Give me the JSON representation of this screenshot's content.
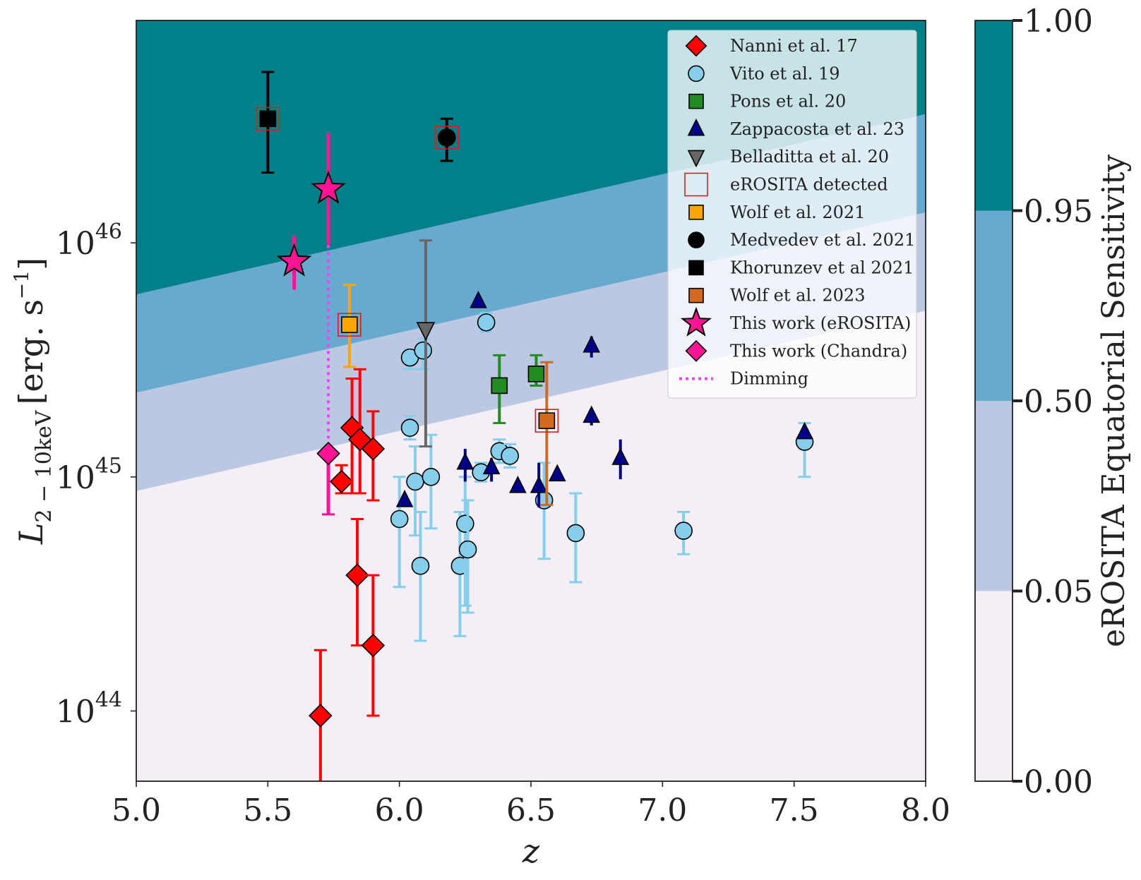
{
  "chart_data": {
    "type": "scatter",
    "xlabel": "z",
    "ylabel_main": "L",
    "ylabel_sub": "2 − 10keV",
    "ylabel_unit": "[erg. s",
    "ylabel_exp": "−1",
    "ylabel_close": "]",
    "xlim": [
      5.0,
      8.0
    ],
    "ylim_log10": [
      43.7,
      46.95
    ],
    "x_ticks": [
      "5.0",
      "5.5",
      "6.0",
      "6.5",
      "7.0",
      "7.5",
      "8.0"
    ],
    "y_ticks": [
      {
        "base": "10",
        "exp": "44",
        "log": 44
      },
      {
        "base": "10",
        "exp": "45",
        "log": 45
      },
      {
        "base": "10",
        "exp": "46",
        "log": 46
      }
    ],
    "sensitivity_boundaries_log10": [
      {
        "level": "0.95",
        "y_at_5": 45.78,
        "y_at_8": 46.55
      },
      {
        "level": "0.50",
        "y_at_5": 45.36,
        "y_at_8": 46.13
      },
      {
        "level": "0.05",
        "y_at_5": 44.94,
        "y_at_8": 45.71
      }
    ],
    "colorbar": {
      "label": "eROSITA Equatorial Sensitivity",
      "ticks": [
        "0.00",
        "0.05",
        "0.50",
        "0.95",
        "1.00"
      ],
      "colors": [
        "#f4eef7",
        "#bcc8e2",
        "#68a9d0",
        "#02808a"
      ]
    },
    "legend": [
      {
        "label": "Nanni et al. 17",
        "marker": "diamond",
        "color": "#ff0000"
      },
      {
        "label": "Vito et al. 19",
        "marker": "circle",
        "color": "#87ceeb"
      },
      {
        "label": "Pons et al. 20",
        "marker": "square",
        "color": "#228b22"
      },
      {
        "label": "Zappacosta et al. 23",
        "marker": "triangle-up",
        "color": "#00008b"
      },
      {
        "label": "Belladitta et al. 20",
        "marker": "triangle-down",
        "color": "#666666"
      },
      {
        "label": "eROSITA detected",
        "marker": "open-square",
        "color": "#e41a1c"
      },
      {
        "label": "Wolf et al. 2021",
        "marker": "square",
        "color": "#ffa500"
      },
      {
        "label": "Medvedev et al. 2021",
        "marker": "circle",
        "color": "#000000"
      },
      {
        "label": "Khorunzev et al 2021",
        "marker": "square",
        "color": "#000000"
      },
      {
        "label": "Wolf et al. 2023",
        "marker": "square",
        "color": "#d2691e"
      },
      {
        "label": "This work (eROSITA)",
        "marker": "star",
        "color": "#ff1493"
      },
      {
        "label": "This work (Chandra)",
        "marker": "diamond",
        "color": "#ff1493"
      },
      {
        "label": "Dimming",
        "marker": "dotted-line",
        "color": "#ee44ee"
      }
    ],
    "series": [
      {
        "name": "Nanni et al. 17",
        "marker": "diamond",
        "color": "#ff0000",
        "errcolor": "#ff0000",
        "points": [
          [
            5.7,
            43.98,
            43.55,
            44.26
          ],
          [
            5.78,
            44.98,
            44.93,
            45.05
          ],
          [
            5.82,
            45.21,
            44.93,
            45.42
          ],
          [
            5.84,
            44.58,
            44.28,
            44.82
          ],
          [
            5.85,
            45.16,
            44.93,
            45.46
          ],
          [
            5.9,
            45.12,
            44.9,
            45.28
          ],
          [
            5.9,
            44.28,
            43.98,
            44.58
          ]
        ]
      },
      {
        "name": "Vito et al. 19",
        "marker": "circle",
        "color": "#87ceeb",
        "errcolor": "#87ceeb",
        "points": [
          [
            6.0,
            44.82,
            44.53,
            45.0
          ],
          [
            6.04,
            45.51,
            45.46,
            45.54
          ],
          [
            6.04,
            45.21,
            45.16,
            45.26
          ],
          [
            6.06,
            44.98,
            44.75,
            45.13
          ],
          [
            6.08,
            44.62,
            44.3,
            44.85
          ],
          [
            6.09,
            45.54,
            45.46,
            45.59
          ],
          [
            6.12,
            45.0,
            44.78,
            45.18
          ],
          [
            6.23,
            44.62,
            44.32,
            44.85
          ],
          [
            6.25,
            44.8,
            44.45,
            45.0
          ],
          [
            6.26,
            44.69,
            44.42,
            44.9
          ],
          [
            6.31,
            45.02,
            44.98,
            45.06
          ],
          [
            6.33,
            45.66,
            45.62,
            45.7
          ],
          [
            6.38,
            45.11,
            45.06,
            45.16
          ],
          [
            6.42,
            45.09,
            45.04,
            45.14
          ],
          [
            6.55,
            44.9,
            44.65,
            45.06
          ],
          [
            6.67,
            44.76,
            44.55,
            44.93
          ],
          [
            7.08,
            44.77,
            44.67,
            44.85
          ],
          [
            7.54,
            45.15,
            45.0,
            45.23
          ]
        ]
      },
      {
        "name": "Pons et al. 20",
        "marker": "square",
        "color": "#228b22",
        "errcolor": "#228b22",
        "points": [
          [
            6.38,
            45.39,
            45.23,
            45.52
          ],
          [
            6.52,
            45.44,
            45.39,
            45.52
          ]
        ]
      },
      {
        "name": "Zappacosta et al. 23",
        "marker": "triangle-up",
        "color": "#00008b",
        "errcolor": "#00008b",
        "points": [
          [
            6.02,
            44.9,
            44.88,
            44.92
          ],
          [
            6.25,
            45.06,
            44.98,
            45.12
          ],
          [
            6.3,
            45.75,
            45.73,
            45.77
          ],
          [
            6.35,
            45.04,
            44.98,
            45.08
          ],
          [
            6.45,
            44.96,
            44.94,
            44.98
          ],
          [
            6.53,
            44.96,
            44.87,
            45.06
          ],
          [
            6.6,
            45.01,
            44.99,
            45.03
          ],
          [
            6.73,
            45.56,
            45.51,
            45.6
          ],
          [
            6.73,
            45.26,
            45.22,
            45.28
          ],
          [
            6.84,
            45.08,
            44.99,
            45.16
          ],
          [
            7.54,
            45.19,
            45.17,
            45.21
          ]
        ]
      },
      {
        "name": "Belladitta et al. 20",
        "marker": "triangle-down",
        "color": "#666666",
        "errcolor": "#666666",
        "points": [
          [
            6.1,
            45.63,
            45.13,
            46.01
          ]
        ]
      },
      {
        "name": "Wolf et al. 2021",
        "marker": "square",
        "color": "#ffa500",
        "errcolor": "#ffa500",
        "detected": true,
        "points": [
          [
            5.81,
            45.65,
            45.47,
            45.82
          ]
        ]
      },
      {
        "name": "Medvedev et al. 2021",
        "marker": "circle",
        "color": "#000000",
        "errcolor": "#000000",
        "detected": true,
        "points": [
          [
            6.18,
            46.45,
            46.35,
            46.53
          ]
        ]
      },
      {
        "name": "Khorunzev et al 2021",
        "marker": "square",
        "color": "#000000",
        "errcolor": "#000000",
        "detected": true,
        "points": [
          [
            5.5,
            46.53,
            46.3,
            46.73
          ]
        ]
      },
      {
        "name": "Wolf et al. 2023",
        "marker": "square",
        "color": "#d2691e",
        "errcolor": "#d2691e",
        "detected": true,
        "points": [
          [
            6.56,
            45.24,
            44.88,
            45.49
          ]
        ]
      },
      {
        "name": "This work (eROSITA)",
        "marker": "star",
        "color": "#ff1493",
        "errcolor": "#ff1493",
        "points": [
          [
            5.6,
            45.92,
            45.8,
            46.03
          ],
          [
            5.73,
            46.23,
            45.99,
            46.47
          ]
        ]
      },
      {
        "name": "This work (Chandra)",
        "marker": "diamond",
        "color": "#ff1493",
        "errcolor": "#ff1493",
        "points": [
          [
            5.73,
            45.1,
            44.84,
            45.1
          ]
        ]
      }
    ],
    "dimming": {
      "color": "#ee44ee",
      "x": 5.73,
      "y_from": 45.99,
      "y_to": 45.1
    },
    "grid": false,
    "legend_position": "top-right"
  }
}
